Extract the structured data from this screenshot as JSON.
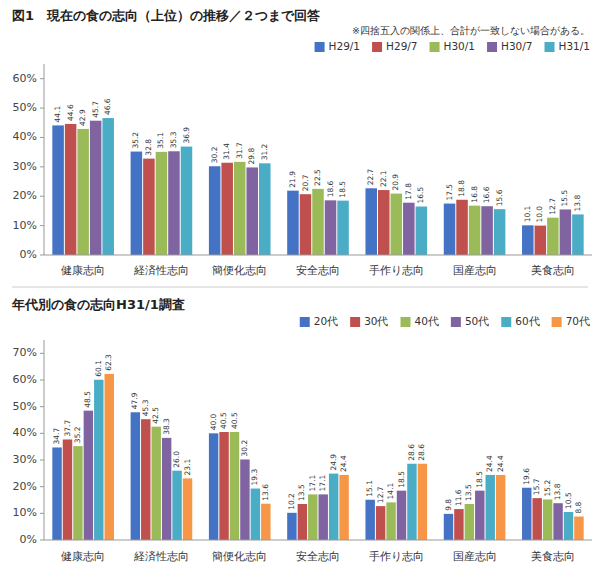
{
  "chart_data": [
    {
      "type": "bar",
      "title": "図1　現在の食の志向（上位）の推移／２つまで回答",
      "subtitle": "※四捨五入の関係上、合計が一致しない場合がある。",
      "categories": [
        "健康志向",
        "経済性志向",
        "簡便化志向",
        "安全志向",
        "手作り志向",
        "国産志向",
        "美食志向"
      ],
      "series": [
        {
          "name": "H29/1",
          "color": "#4472C4",
          "values": [
            44.1,
            35.2,
            30.2,
            21.9,
            22.7,
            17.5,
            10.1
          ]
        },
        {
          "name": "H29/7",
          "color": "#C0504D",
          "values": [
            44.6,
            32.8,
            31.4,
            20.7,
            22.1,
            18.8,
            10.0
          ],
          "value_labels": [
            "44.6",
            "32.8",
            "31.4",
            "20.7",
            "22.1",
            "18.8",
            "10.0"
          ]
        },
        {
          "name": "H30/1",
          "color": "#9BBB59",
          "values": [
            42.9,
            35.1,
            31.7,
            22.5,
            20.9,
            16.8,
            12.7
          ]
        },
        {
          "name": "H30/7",
          "color": "#8064A2",
          "values": [
            45.7,
            35.3,
            29.8,
            18.6,
            17.8,
            16.6,
            15.5
          ]
        },
        {
          "name": "H31/1",
          "color": "#4BACC6",
          "values": [
            46.6,
            36.9,
            31.2,
            18.5,
            16.5,
            15.6,
            13.8
          ]
        }
      ],
      "ylim": [
        0,
        65
      ],
      "yticks": [
        {
          "value": 0,
          "label": "0%"
        },
        {
          "value": 10,
          "label": "10%"
        },
        {
          "value": 20,
          "label": "20%"
        },
        {
          "value": 30,
          "label": "30%"
        },
        {
          "value": 40,
          "label": "40%"
        },
        {
          "value": 50,
          "label": "50%"
        },
        {
          "value": 60,
          "label": "60%"
        }
      ],
      "grid": false,
      "legend": "upper right",
      "data_labels": true
    },
    {
      "type": "bar",
      "title": "年代別の食の志向H31/1調査",
      "categories": [
        "健康志向",
        "経済性志向",
        "簡便化志向",
        "安全志向",
        "手作り志向",
        "国産志向",
        "美食志向"
      ],
      "series": [
        {
          "name": "20代",
          "color": "#4472C4",
          "values": [
            34.7,
            47.9,
            40.0,
            10.2,
            15.1,
            9.8,
            19.6
          ],
          "value_labels": [
            "34.7",
            "47.9",
            "40.0",
            "10.2",
            "15.1",
            "9.8",
            "19.6"
          ]
        },
        {
          "name": "30代",
          "color": "#C0504D",
          "values": [
            37.7,
            45.3,
            40.5,
            13.5,
            12.7,
            11.6,
            15.7
          ]
        },
        {
          "name": "40代",
          "color": "#9BBB59",
          "values": [
            35.2,
            42.5,
            40.5,
            17.1,
            14.1,
            13.5,
            15.2
          ]
        },
        {
          "name": "50代",
          "color": "#8064A2",
          "values": [
            48.5,
            38.3,
            30.2,
            17.1,
            18.5,
            18.5,
            13.8
          ]
        },
        {
          "name": "60代",
          "color": "#4BACC6",
          "values": [
            60.1,
            26.0,
            19.3,
            24.9,
            28.6,
            24.4,
            10.5
          ],
          "value_labels": [
            "60.1",
            "26.0",
            "19.3",
            "24.9",
            "28.6",
            "24.4",
            "10.5"
          ]
        },
        {
          "name": "70代",
          "color": "#F79646",
          "values": [
            62.3,
            23.1,
            13.6,
            24.4,
            28.6,
            24.4,
            8.8
          ]
        }
      ],
      "ylim": [
        0,
        75
      ],
      "yticks": [
        {
          "value": 0,
          "label": "0%"
        },
        {
          "value": 10,
          "label": "10%"
        },
        {
          "value": 20,
          "label": "20%"
        },
        {
          "value": 30,
          "label": "30%"
        },
        {
          "value": 40,
          "label": "40%"
        },
        {
          "value": 50,
          "label": "50%"
        },
        {
          "value": 60,
          "label": "60%"
        },
        {
          "value": 70,
          "label": "70%"
        }
      ],
      "grid": false,
      "legend": "upper right",
      "data_labels": true
    }
  ]
}
